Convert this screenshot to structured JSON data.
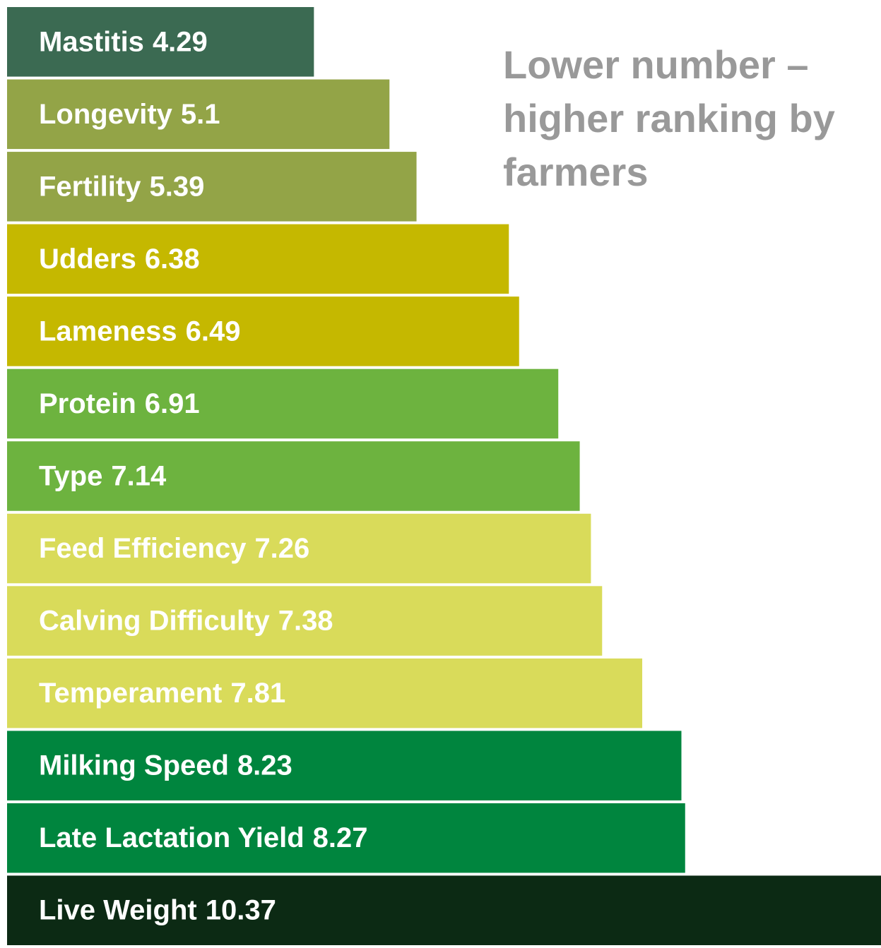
{
  "chart_data": {
    "type": "bar",
    "orientation": "horizontal",
    "categories": [
      "Mastitis",
      "Longevity",
      "Fertility",
      "Udders",
      "Lameness",
      "Protein",
      "Type",
      "Feed Efficiency",
      "Calving Difficulty",
      "Temperament",
      "Milking Speed",
      "Late Lactation Yield",
      "Live Weight"
    ],
    "values": [
      4.29,
      5.1,
      5.39,
      6.38,
      6.49,
      6.91,
      7.14,
      7.26,
      7.38,
      7.81,
      8.23,
      8.27,
      10.37
    ],
    "colors": [
      "#3b6a52",
      "#93a447",
      "#93a447",
      "#c5b800",
      "#c5b800",
      "#6db33f",
      "#6db33f",
      "#d9db5a",
      "#d9db5a",
      "#d9db5a",
      "#00853e",
      "#00853e",
      "#0c2a14"
    ],
    "xlim": [
      1,
      10.37
    ],
    "annotation": [
      "Lower number –",
      "higher ranking by",
      "farmers"
    ]
  }
}
